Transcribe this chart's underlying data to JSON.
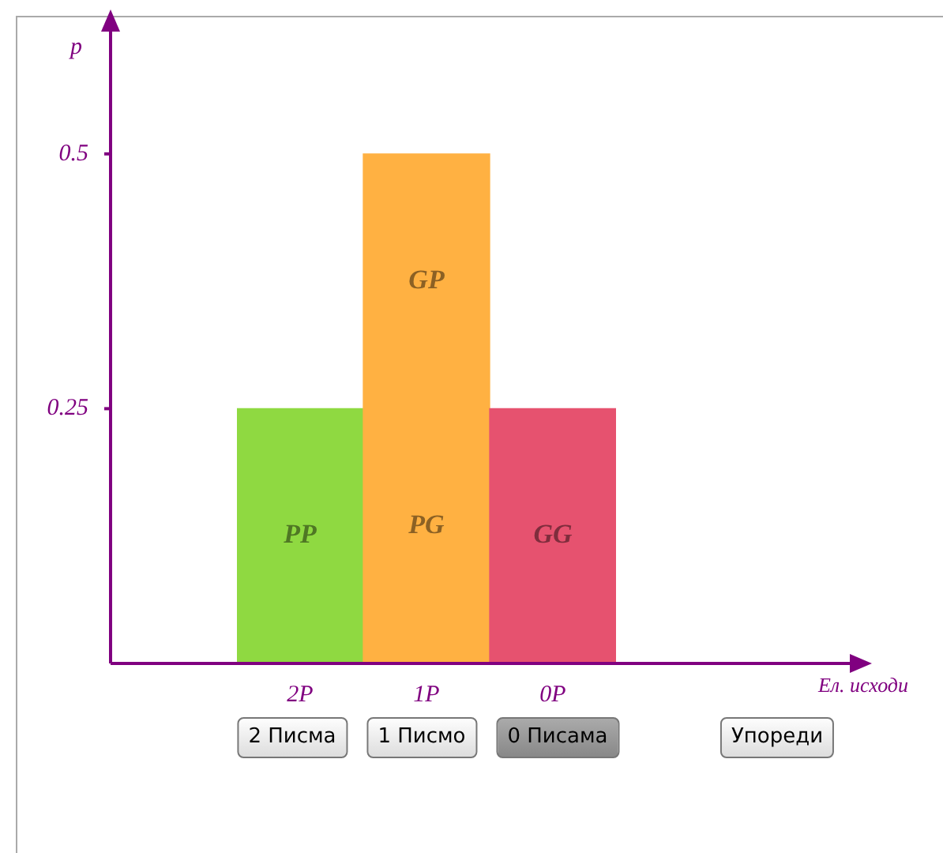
{
  "chart_data": {
    "type": "bar",
    "ylabel": "p",
    "categories": [
      "2P",
      "1P",
      "0P"
    ],
    "values": [
      0.25,
      0.5,
      0.25
    ],
    "colors": [
      "#8fd941",
      "#ffb142",
      "#e6526f"
    ],
    "ylim": [
      0,
      0.62
    ],
    "yticks": [
      0.25,
      0.5
    ],
    "annotations": [
      "PP",
      "GP",
      "PG",
      "GG",
      "2 Писма",
      "1 Писмо",
      "0 Писама",
      "Упореди",
      "Ел. исходи"
    ]
  }
}
